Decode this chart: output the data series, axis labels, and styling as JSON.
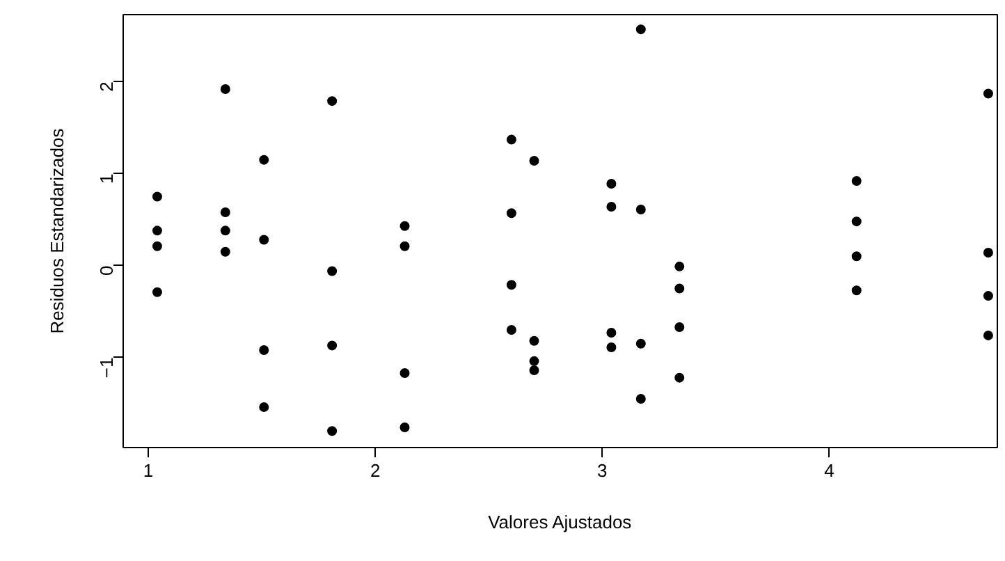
{
  "chart_data": {
    "type": "scatter",
    "xlabel": "Valores Ajustados",
    "ylabel": "Residuos Estandarizados",
    "x": [
      1.04,
      1.04,
      1.04,
      1.04,
      1.34,
      1.34,
      1.34,
      1.34,
      1.51,
      1.51,
      1.51,
      1.51,
      1.81,
      1.81,
      1.81,
      1.81,
      2.13,
      2.13,
      2.13,
      2.13,
      2.6,
      2.6,
      2.6,
      2.6,
      2.7,
      2.7,
      2.7,
      2.7,
      3.04,
      3.04,
      3.04,
      3.04,
      3.17,
      3.17,
      3.17,
      3.17,
      3.34,
      3.34,
      3.34,
      3.34,
      4.12,
      4.12,
      4.12,
      4.12,
      4.7,
      4.7,
      4.7,
      4.7
    ],
    "series": [
      {
        "color": "#000000",
        "values": [
          0.75,
          0.38,
          0.21,
          -0.29,
          1.92,
          0.58,
          0.38,
          0.15,
          1.15,
          0.28,
          -0.92,
          -1.54,
          1.79,
          -0.06,
          -0.87,
          -1.8,
          0.43,
          0.21,
          -1.17,
          -1.76,
          1.37,
          0.57,
          -0.21,
          -0.7,
          1.14,
          -0.82,
          -1.04,
          -1.14,
          0.89,
          0.64,
          -0.73,
          -0.89,
          2.57,
          0.61,
          -0.85,
          -1.45,
          -0.01,
          -0.25,
          -0.67,
          -1.22,
          0.92,
          0.48,
          0.1,
          -0.27,
          1.87,
          0.14,
          -0.33,
          -0.76
        ]
      }
    ],
    "xlim": [
      0.89,
      4.74
    ],
    "ylim": [
      -1.98,
      2.73
    ],
    "xticks": [
      1,
      2,
      3,
      4
    ],
    "yticks": [
      {
        "value": -1,
        "label": "−1"
      },
      0,
      1,
      2
    ],
    "marker": "circle",
    "grid": false
  }
}
